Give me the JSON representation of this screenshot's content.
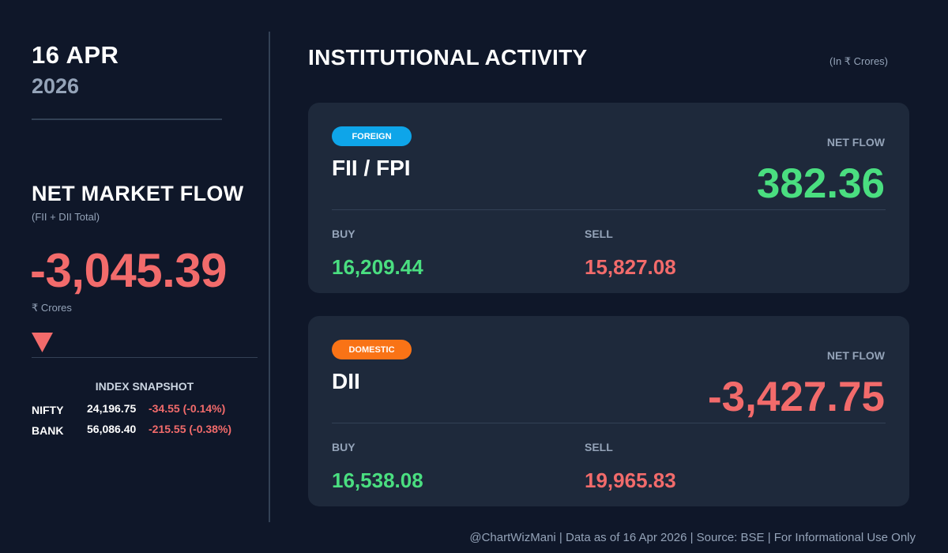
{
  "date": {
    "day_month": "16 APR",
    "year": "2026"
  },
  "net_market_flow": {
    "title": "NET MARKET FLOW",
    "subtitle": "(FII + DII Total)",
    "value": "-3,045.39",
    "unit": "₹ Crores",
    "direction_icon": "triangle-down-icon"
  },
  "index_snapshot": {
    "title": "INDEX SNAPSHOT",
    "rows": [
      {
        "name": "NIFTY",
        "price": "24,196.75",
        "change": "-34.55 (-0.14%)"
      },
      {
        "name": "BANK",
        "price": "56,086.40",
        "change": "-215.55 (-0.38%)"
      }
    ]
  },
  "institutional_activity": {
    "title": "INSTITUTIONAL ACTIVITY",
    "unit": "(In ₹ Crores)",
    "cards": [
      {
        "badge": "FOREIGN",
        "name": "FII / FPI",
        "net_flow_label": "NET FLOW",
        "net_flow": "382.36",
        "buy_label": "BUY",
        "buy": "16,209.44",
        "sell_label": "SELL",
        "sell": "15,827.08"
      },
      {
        "badge": "DOMESTIC",
        "name": "DII",
        "net_flow_label": "NET FLOW",
        "net_flow": "-3,427.75",
        "buy_label": "BUY",
        "buy": "16,538.08",
        "sell_label": "SELL",
        "sell": "19,965.83"
      }
    ]
  },
  "footer": "@ChartWizMani | Data as of 16 Apr 2026 | Source: BSE | For Informational Use Only",
  "colors": {
    "background": "#0f1729",
    "card": "#1e293b",
    "positive": "#4ade80",
    "negative": "#f26b6b",
    "muted": "#94a3b8",
    "foreign_badge": "#0ea5e9",
    "domestic_badge": "#f97316"
  }
}
